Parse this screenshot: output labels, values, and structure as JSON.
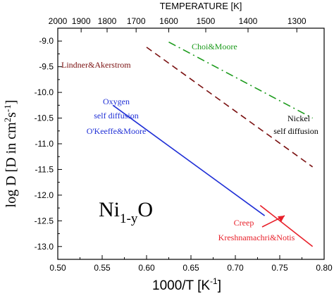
{
  "chart_data": {
    "type": "line",
    "xlabel": "1000/T  [K",
    "xlabel_sup": "-1",
    "xlabel_end": "]",
    "ylabel": "log D [D in cm",
    "ylabel_sup1": "2",
    "ylabel_mid": "s",
    "ylabel_sup2": "-1",
    "ylabel_end": "]",
    "top_title": "TEMPERATURE [K]",
    "xlim": [
      0.5,
      0.8
    ],
    "ylim": [
      -13.25,
      -8.75
    ],
    "x_ticks": [
      0.5,
      0.55,
      0.6,
      0.65,
      0.7,
      0.75,
      0.8
    ],
    "x_tick_labels": [
      "0.50",
      "0.55",
      "0.60",
      "0.65",
      "0.70",
      "0.75",
      "0.80"
    ],
    "y_ticks": [
      -9.0,
      -9.5,
      -10.0,
      -10.5,
      -11.0,
      -11.5,
      -12.0,
      -12.5,
      -13.0
    ],
    "y_tick_labels": [
      "-9.0",
      "-9.5",
      "-10.0",
      "-10.5",
      "-11.0",
      "-11.5",
      "-12.0",
      "-12.5",
      "-13.0"
    ],
    "top_ticks": [
      2000,
      1900,
      1800,
      1700,
      1600,
      1500,
      1400,
      1300
    ],
    "top_tick_labels": [
      "2000",
      "1900",
      "1800",
      "1700",
      "1600",
      "1500",
      "1400",
      "1300"
    ],
    "compound": {
      "base": "Ni",
      "sub": "1-y",
      "tail": "O"
    },
    "series": [
      {
        "name": "Choi&Moore",
        "color": "#1a9a1a",
        "dash": "dashdot",
        "x": [
          0.625,
          0.787
        ],
        "y": [
          -9.02,
          -10.5
        ]
      },
      {
        "name": "Lindner&Akerstrom",
        "color": "#7a1010",
        "dash": "dash",
        "x": [
          0.6,
          0.787
        ],
        "y": [
          -9.12,
          -11.45
        ]
      },
      {
        "name": "Oxygen self diffusion O'Keeffe&Moore",
        "color": "#1f2fd6",
        "dash": "solid",
        "x": [
          0.562,
          0.733
        ],
        "y": [
          -10.25,
          -12.4
        ]
      },
      {
        "name": "Creep Kreshnamachri&Notis",
        "color": "#e8202a",
        "dash": "solid",
        "x": [
          0.728,
          0.787
        ],
        "y": [
          -12.2,
          -13.0
        ]
      }
    ],
    "labels": [
      {
        "id": "choi",
        "text": "Choi&Moore",
        "color": "#1a9a1a"
      },
      {
        "id": "lindner",
        "text": "Lindner&Akerstrom",
        "color": "#7a1010"
      },
      {
        "id": "oxygen1",
        "text": "Oxygen",
        "color": "#1f2fd6"
      },
      {
        "id": "oxygen2",
        "text": "self diffusion",
        "color": "#1f2fd6"
      },
      {
        "id": "oxygen3",
        "text": "O'Keeffe&Moore",
        "color": "#1f2fd6"
      },
      {
        "id": "nickel1",
        "text": "Nickel",
        "color": "#000000"
      },
      {
        "id": "nickel2",
        "text": "self diffusion",
        "color": "#000000"
      },
      {
        "id": "creep1",
        "text": "Creep",
        "color": "#e8202a"
      },
      {
        "id": "creep2",
        "text": "Kreshnamachri&Notis",
        "color": "#e8202a"
      }
    ]
  }
}
